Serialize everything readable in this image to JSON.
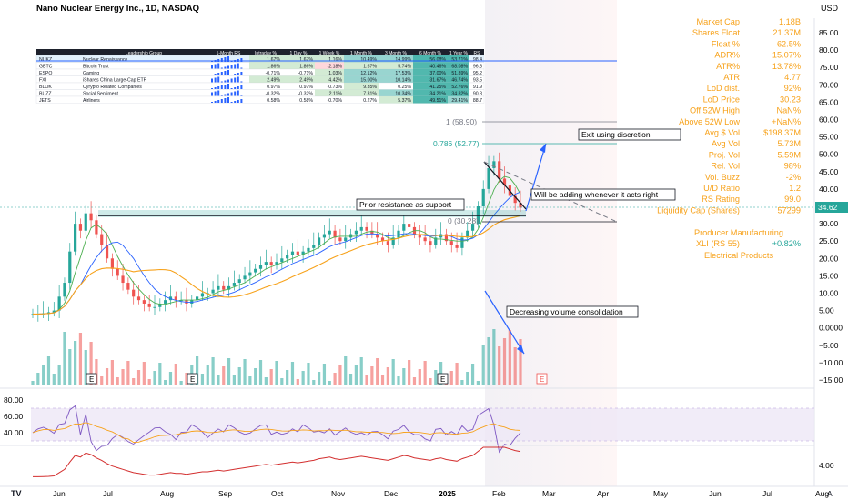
{
  "header": {
    "title": "Nano Nuclear Energy Inc., 1D, NASDAQ",
    "currency": "USD",
    "tv_logo": "TV"
  },
  "leadership_table": {
    "columns": [
      "",
      "Leadership Group",
      "1-Month RS",
      "Intraday %",
      "1 Day %",
      "1 Week %",
      "1 Month %",
      "3 Month %",
      "6 Month %",
      "1 Year %",
      "RS"
    ],
    "rows": [
      {
        "ticker": "NUKZ",
        "group": "Nuclear Renaissance",
        "intraday": "1.67%",
        "day": "1.67%",
        "week": "1.16%",
        "month": "10.49%",
        "m3": "14.99%",
        "m6": "56.08%",
        "y1": "53.71%",
        "rs": "98.4"
      },
      {
        "ticker": "GBTC",
        "group": "Bitcoin Trust",
        "intraday": "1.86%",
        "day": "1.86%",
        "week": "-2.18%",
        "month": "1.67%",
        "m3": "5.74%",
        "m6": "40.46%",
        "y1": "68.08%",
        "rs": "96.8"
      },
      {
        "ticker": "ESPO",
        "group": "Gaming",
        "intraday": "-0.71%",
        "day": "-0.71%",
        "week": "1.03%",
        "month": "12.12%",
        "m3": "17.53%",
        "m6": "37.00%",
        "y1": "51.89%",
        "rs": "95.2"
      },
      {
        "ticker": "FXI",
        "group": "iShares China Large-Cap ETF",
        "intraday": "2.49%",
        "day": "2.49%",
        "week": "4.42%",
        "month": "15.00%",
        "m3": "10.14%",
        "m6": "31.67%",
        "y1": "46.74%",
        "rs": "93.5"
      },
      {
        "ticker": "BLOK",
        "group": "Cyrypto Related Companies",
        "intraday": "0.97%",
        "day": "0.97%",
        "week": "-0.73%",
        "month": "9.35%",
        "m3": "0.25%",
        "m6": "41.25%",
        "y1": "52.76%",
        "rs": "91.9"
      },
      {
        "ticker": "BUZZ",
        "group": "Social Sentiment",
        "intraday": "-0.32%",
        "day": "-0.32%",
        "week": "2.11%",
        "month": "7.31%",
        "m3": "10.34%",
        "m6": "34.21%",
        "y1": "34.82%",
        "rs": "90.3"
      },
      {
        "ticker": "JETS",
        "group": "Airliners",
        "intraday": "0.58%",
        "day": "0.58%",
        "week": "-0.70%",
        "month": "0.27%",
        "m3": "5.37%",
        "m6": "49.51%",
        "y1": "29.41%",
        "rs": "88.7"
      }
    ]
  },
  "stats_panel": {
    "rows": [
      {
        "label": "Market Cap",
        "value": "1.18B"
      },
      {
        "label": "Shares Float",
        "value": "21.37M"
      },
      {
        "label": "Float %",
        "value": "62.5%"
      },
      {
        "label": "ADR%",
        "value": "15.07%"
      },
      {
        "label": "ATR%",
        "value": "13.78%"
      },
      {
        "label": "ATR",
        "value": "4.77"
      },
      {
        "label": "LoD dist.",
        "value": "92%"
      },
      {
        "label": "LoD Price",
        "value": "30.23"
      },
      {
        "label": "Off 52W High",
        "value": "NaN%"
      },
      {
        "label": "Above 52W Low",
        "value": "+NaN%"
      },
      {
        "label": "Avg $ Vol",
        "value": "$198.37M"
      },
      {
        "label": "Avg Vol",
        "value": "5.73M"
      },
      {
        "label": "Proj. Vol",
        "value": "5.59M"
      },
      {
        "label": "Rel. Vol",
        "value": "98%"
      },
      {
        "label": "Vol. Buzz",
        "value": "-2%"
      },
      {
        "label": "U/D Ratio",
        "value": "1.2"
      },
      {
        "label": "RS Rating",
        "value": "99.0"
      },
      {
        "label": "Liquidity Cap (Shares)",
        "value": "57299"
      }
    ],
    "industry": "Producer Manufacturing",
    "index_label": "XLI (RS 55)",
    "index_value": "+0.82%",
    "sector": "Electrical Products",
    "accent_color": "#f7a21b",
    "positive_color": "#26a69a"
  },
  "annotations": {
    "exit": "Exit using discretion",
    "adding": "Will be adding whenever it acts right",
    "resistance": "Prior resistance as support",
    "volume": "Decreasing volume consolidation",
    "fib_1": "1 (58.90)",
    "fib_0786": "0.786 (52.77)",
    "fib_0": "0 (30.28)",
    "earnings_marker": "E"
  },
  "chart_data": {
    "type": "line",
    "title": "Nano Nuclear Energy Inc., 1D, NASDAQ",
    "x_labels": [
      "Jun",
      "Jul",
      "Aug",
      "Sep",
      "Oct",
      "Nov",
      "Dec",
      "2025",
      "Feb",
      "Mar",
      "Apr",
      "May",
      "Jun",
      "Jul",
      "Aug"
    ],
    "y_ticks": [
      "85.00",
      "80.00",
      "75.00",
      "70.00",
      "65.00",
      "60.00",
      "55.00",
      "50.00",
      "45.00",
      "40.00",
      "35.00",
      "30.00",
      "25.00",
      "20.00",
      "15.00",
      "10.00",
      "5.00",
      "0.0000",
      "−5.00",
      "−10.00",
      "−15.00"
    ],
    "last_price": "34.62",
    "last_price_color": "#26a69a",
    "price_close_approx": [
      4,
      4,
      4.2,
      4.5,
      5,
      9,
      13,
      22,
      30,
      28,
      33,
      31,
      27,
      24,
      20,
      17,
      15,
      13,
      11,
      9,
      8,
      7,
      6,
      6,
      7,
      8,
      9,
      8,
      8,
      7,
      8,
      9,
      10,
      10,
      11,
      12,
      11,
      12,
      13,
      14,
      15,
      16,
      17,
      18,
      19,
      18,
      19,
      20,
      21,
      22,
      21,
      22,
      23,
      24,
      26,
      27,
      28,
      26,
      25,
      26,
      27,
      28,
      29,
      28,
      27,
      26,
      25,
      24,
      26,
      28,
      30,
      29,
      27,
      26,
      25,
      24,
      26,
      27,
      25,
      24,
      23,
      26,
      28,
      30,
      35,
      40,
      46,
      48,
      43,
      41,
      38,
      36,
      34.62
    ],
    "levels": {
      "fib_1": 58.9,
      "fib_0786": 52.77,
      "fib_0": 30.28,
      "prior_resistance": 32.5
    },
    "rsi_ticks": [
      "80.00",
      "60.00",
      "40.00"
    ],
    "rs_line_ticks": [
      "4.00"
    ],
    "colors": {
      "up": "#26a69a",
      "down": "#ef5350",
      "ma_short": "#2962ff",
      "ma_mid": "#f7a21b",
      "ma_fast": "#4caf50",
      "fib": "#26a69a",
      "rsi": "#7e57c2",
      "rs_line": "#d32f2f",
      "volume_up": "#26a69a",
      "volume_down": "#ef5350"
    }
  }
}
